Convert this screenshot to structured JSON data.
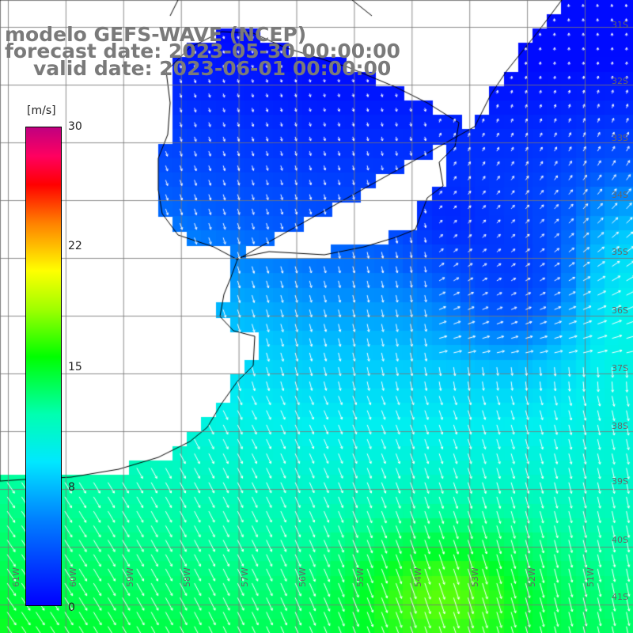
{
  "title": {
    "model": "modelo GEFS-WAVE (NCEP)",
    "forecast": "forecast date: 2023-05-30 00:00:00",
    "valid": "valid date: 2023-06-01 00:00:00"
  },
  "colorbar": {
    "unit": "[m/s]",
    "ticks": [
      "30",
      "22",
      "15",
      "8",
      "0"
    ],
    "colors": [
      "#0000ff",
      "#0080ff",
      "#00e8ff",
      "#00ffb0",
      "#00ff00",
      "#a0ff00",
      "#ffff00",
      "#ff8000",
      "#ff0000",
      "#c00080"
    ]
  },
  "lat_labels": [
    "31S",
    "32S",
    "33S",
    "34S",
    "35S",
    "36S",
    "37S",
    "38S",
    "39S",
    "40S",
    "41S"
  ],
  "lon_labels": [
    "61W",
    "60W",
    "59W",
    "58W",
    "57W",
    "56W",
    "55W",
    "54W",
    "53W",
    "52W",
    "51W"
  ],
  "field": {
    "variable": "wind speed and direction",
    "ocean_color": "#00c8ff",
    "land_color": "#ffffff",
    "coast_color": "#000000",
    "grid_color": "#888888",
    "arrow_color": "#ffffff"
  }
}
